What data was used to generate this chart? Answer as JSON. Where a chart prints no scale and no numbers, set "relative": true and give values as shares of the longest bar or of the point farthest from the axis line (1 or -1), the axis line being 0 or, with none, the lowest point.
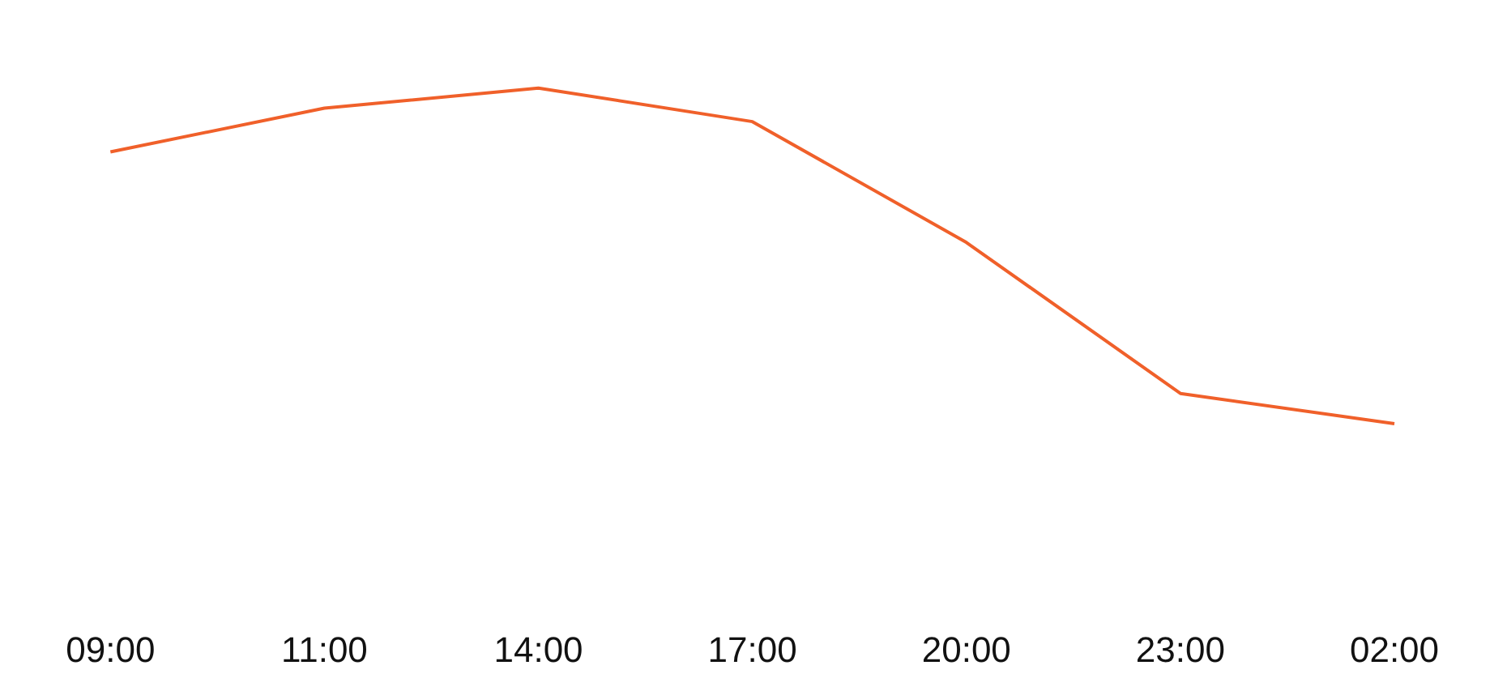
{
  "chart_data": {
    "type": "line",
    "relative": true,
    "categories": [
      "09:00",
      "11:00",
      "14:00",
      "17:00",
      "20:00",
      "23:00",
      "02:00"
    ],
    "series": [
      {
        "color": "#f0602a",
        "values": [
          0.81,
          0.94,
          1,
          0.9,
          0.54,
          0.09,
          0
        ]
      }
    ],
    "grid": false,
    "marker": "none",
    "line_style": "solid"
  }
}
